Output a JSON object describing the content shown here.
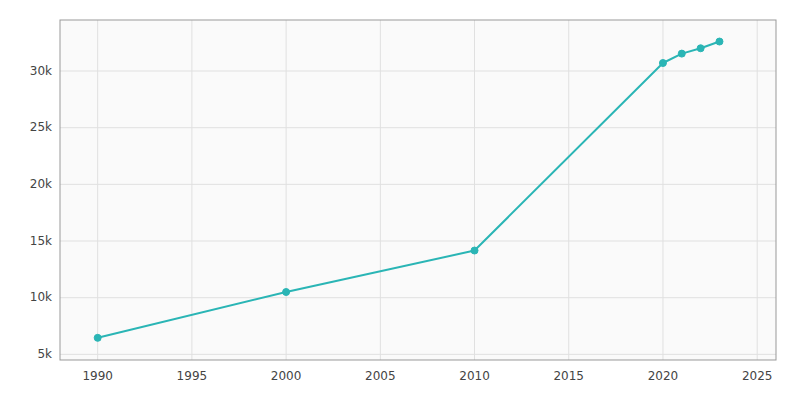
{
  "chart_data": {
    "type": "line",
    "x": [
      1990,
      2000,
      2010,
      2020,
      2021,
      2022,
      2023
    ],
    "values": [
      6456,
      10500,
      14160,
      30705,
      31534,
      32006,
      32600
    ],
    "color": "#2ab5b5",
    "marker": "circle",
    "xlim": [
      1988,
      2026
    ],
    "ylim": [
      4500,
      34500
    ],
    "xticks": [
      1990,
      1995,
      2000,
      2005,
      2010,
      2015,
      2020,
      2025
    ],
    "yticks": [
      {
        "value": 5000,
        "label": "5k"
      },
      {
        "value": 10000,
        "label": "10k"
      },
      {
        "value": 15000,
        "label": "15k"
      },
      {
        "value": 20000,
        "label": "20k"
      },
      {
        "value": 25000,
        "label": "25k"
      },
      {
        "value": 30000,
        "label": "30k"
      }
    ],
    "grid": true
  }
}
